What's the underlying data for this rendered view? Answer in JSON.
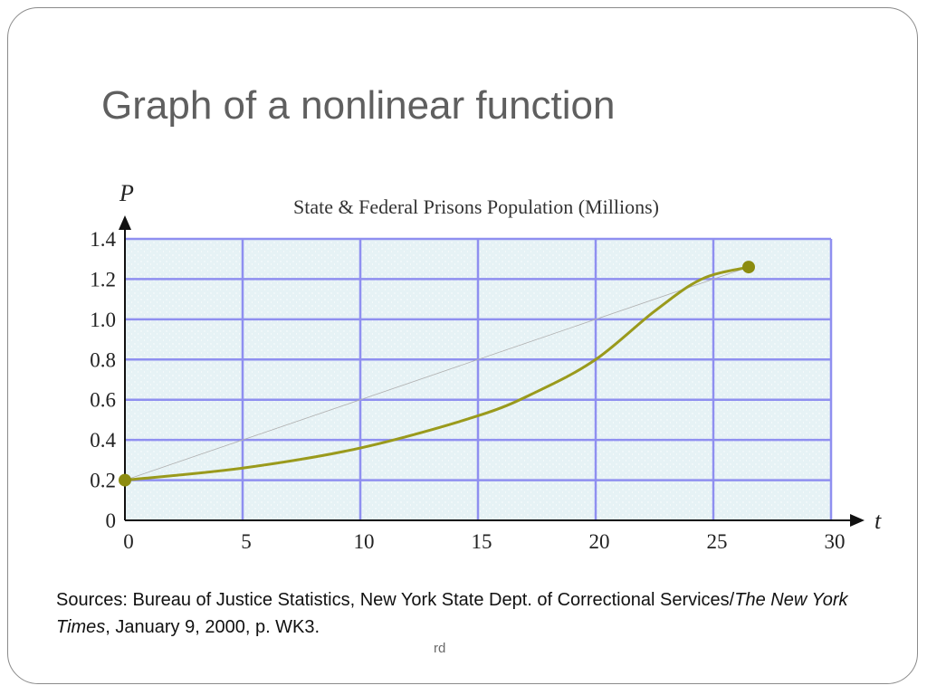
{
  "slide": {
    "title": "Graph of a nonlinear function",
    "source_prefix": "Sources: Bureau of Justice Statistics, New York State Dept. of Correctional Services/",
    "source_italic": "The New York Times",
    "source_suffix": ", January 9, 2000, p. WK3.",
    "footer": "rd"
  },
  "chart_data": {
    "type": "line",
    "title": "State & Federal Prisons Population (Millions)",
    "xlabel": "t",
    "ylabel": "P",
    "xlim": [
      0,
      30
    ],
    "ylim": [
      0,
      1.4
    ],
    "x_ticks": [
      "0",
      "5",
      "10",
      "15",
      "20",
      "25",
      "30"
    ],
    "y_ticks": [
      "0",
      "0.2",
      "0.4",
      "0.6",
      "0.8",
      "1.0",
      "1.2",
      "1.4"
    ],
    "grid": true,
    "series": [
      {
        "x": [
          0,
          5,
          10,
          15,
          17.5,
          20,
          22.5,
          24.5,
          26.5
        ],
        "y": [
          0.2,
          0.26,
          0.36,
          0.52,
          0.64,
          0.8,
          1.04,
          1.2,
          1.26
        ]
      }
    ],
    "endpoints": [
      {
        "x": 0,
        "y": 0.2
      },
      {
        "x": 26.5,
        "y": 1.26
      }
    ],
    "secant": {
      "x": [
        0,
        26.5
      ],
      "y": [
        0.2,
        1.26
      ]
    },
    "colors": {
      "plot_bg": "#e6f2f5",
      "grid": "#8f8ff0",
      "curve": "#9a9a1c",
      "marker": "#8c8c10",
      "secant": "#b0b0b0"
    }
  }
}
